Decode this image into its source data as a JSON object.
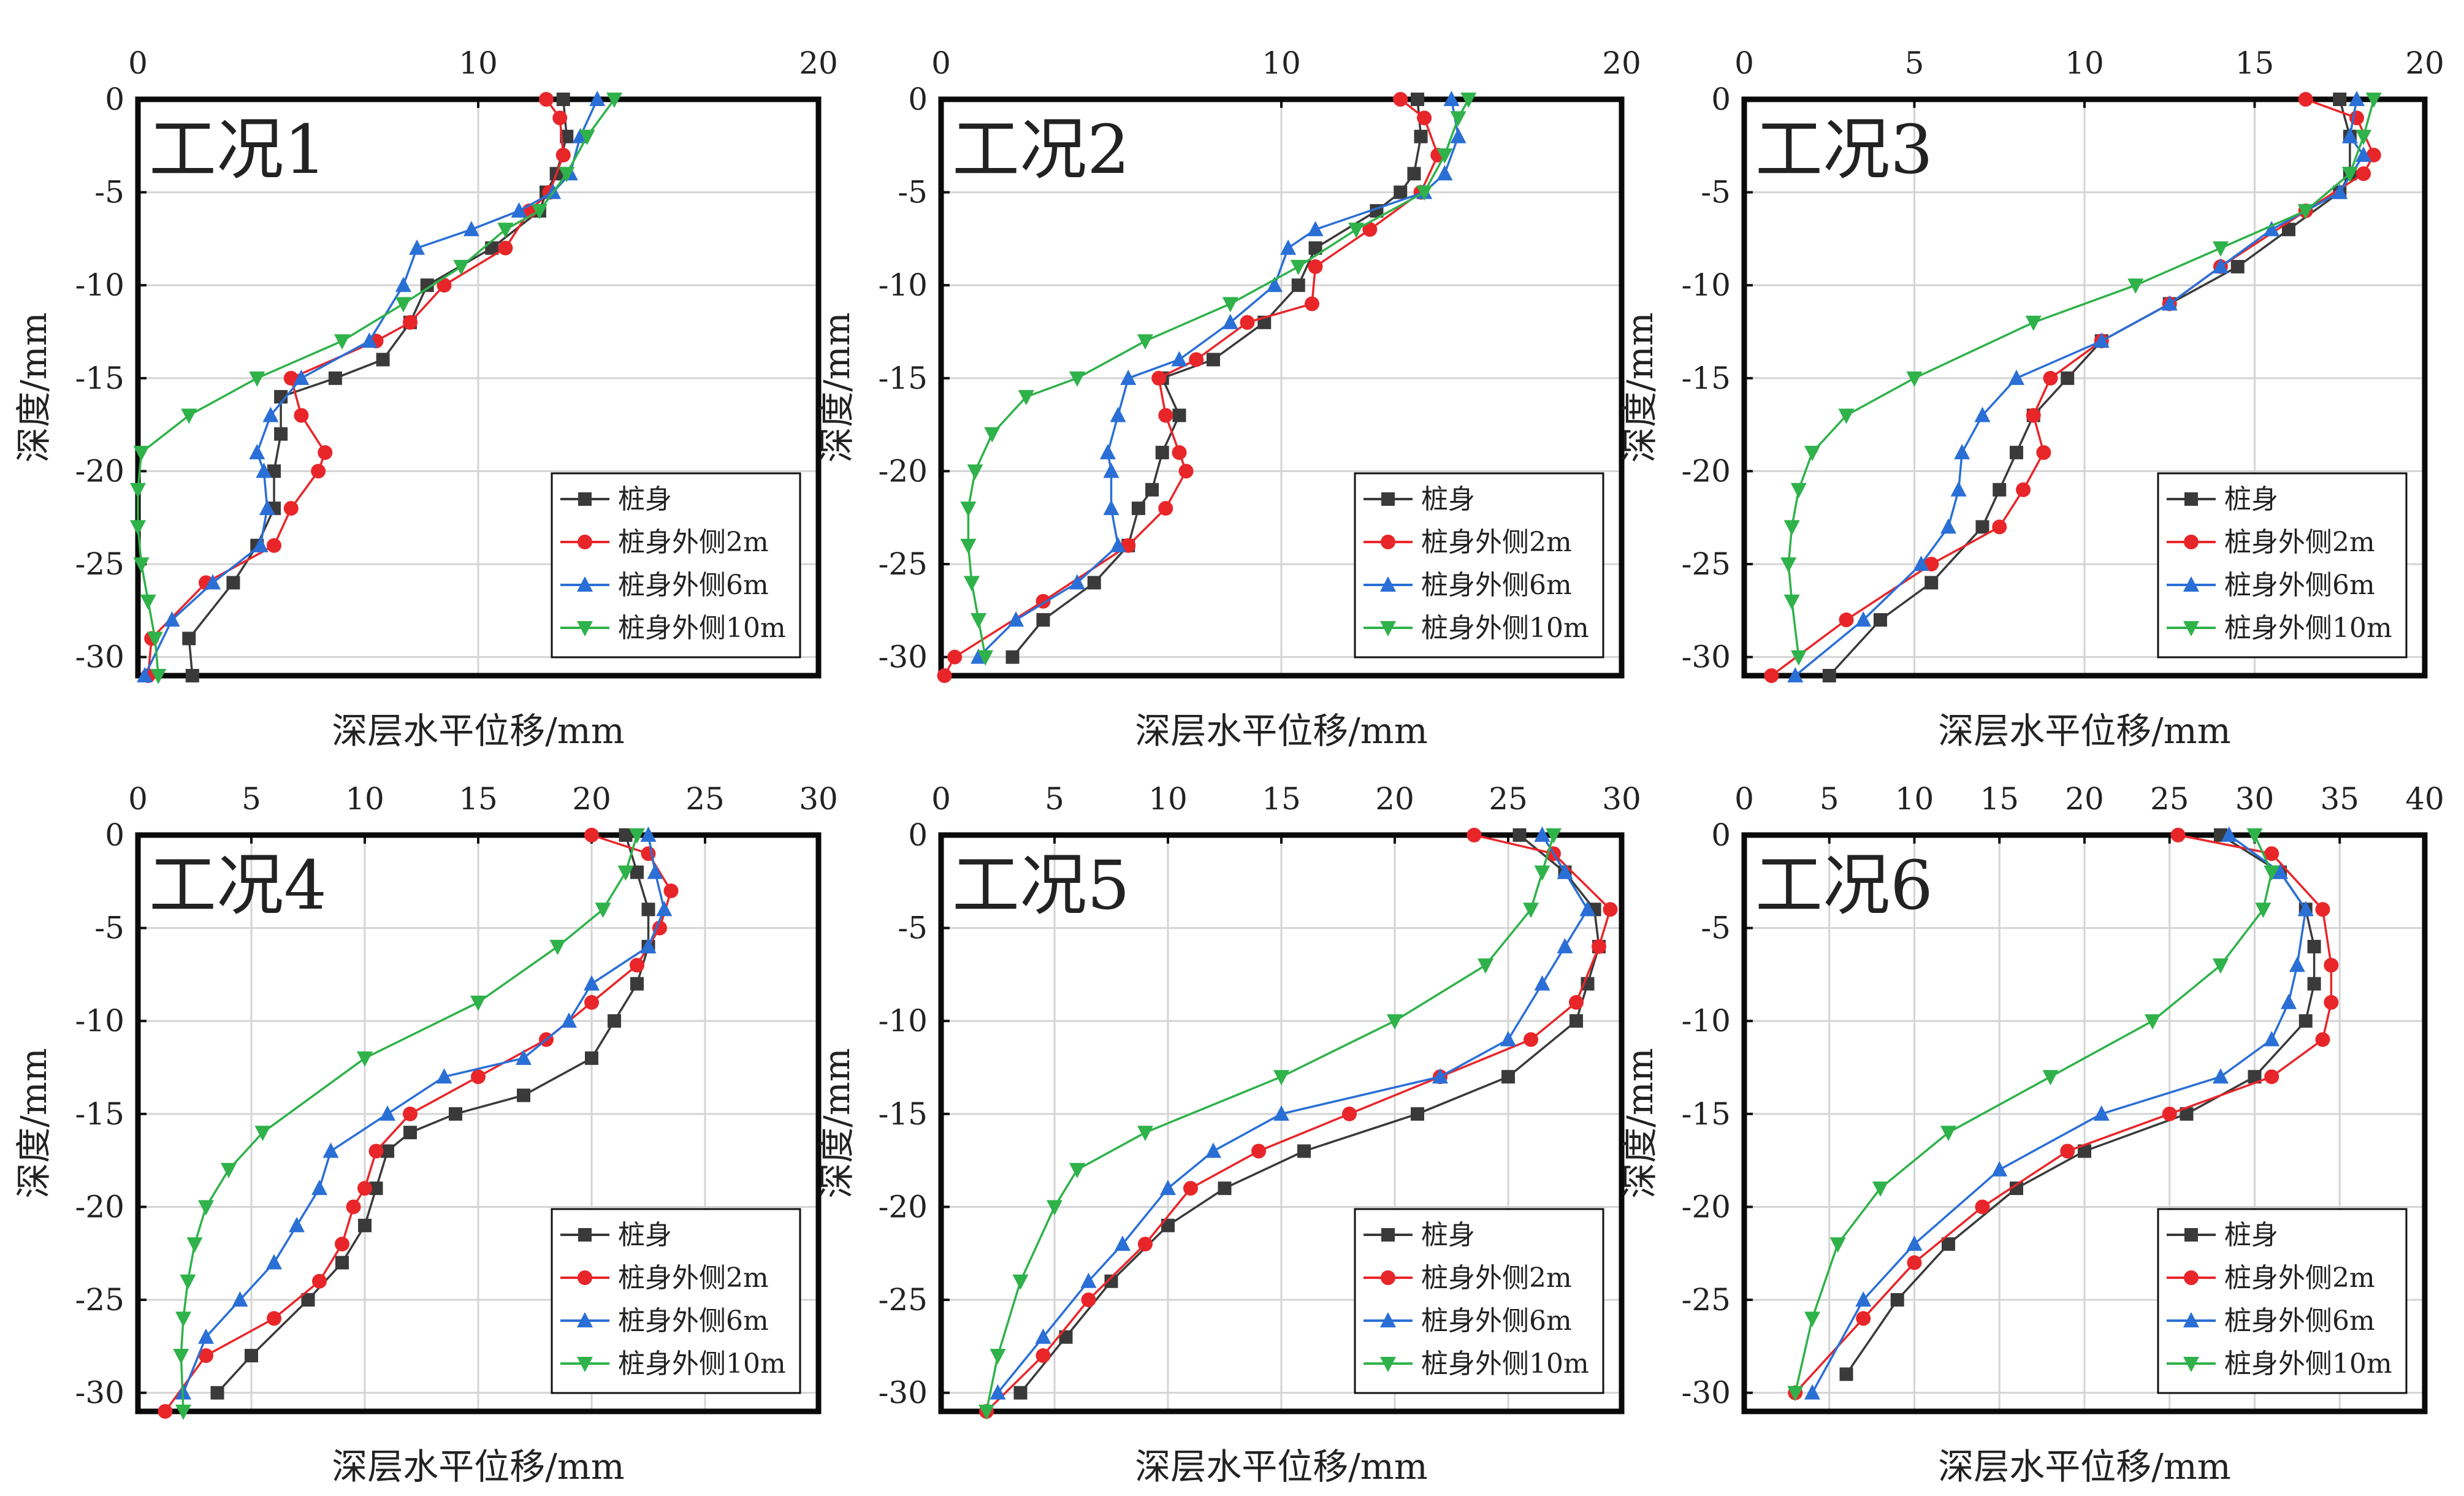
{
  "legend": [
    "桩身",
    "桩身外侧2m",
    "桩身外侧6m",
    "桩身外侧10m"
  ],
  "series_colors": [
    "#3a3a3a",
    "#e8262a",
    "#2a6fd6",
    "#2fb24a"
  ],
  "series_markers": [
    "square",
    "circle",
    "triangle-up",
    "triangle-down"
  ],
  "chart_data": [
    {
      "type": "line",
      "label": "工况1",
      "xlabel": "深层水平位移/mm",
      "ylabel": "深度/mm",
      "xlim": [
        0,
        20
      ],
      "xticks": [
        "0",
        "10",
        "20"
      ],
      "ylim": [
        -31,
        0
      ],
      "yticks": [
        "0",
        "-5",
        "-10",
        "-15",
        "-20",
        "-25",
        "-30"
      ],
      "x_axis_position": "top",
      "grid": true,
      "legend_position": "bottom-right",
      "series": [
        {
          "name": "桩身",
          "x": [
            12.5,
            12.6,
            12.3,
            12.0,
            11.8,
            10.4,
            8.5,
            8.0,
            7.2,
            5.8,
            4.2,
            4.2,
            4.0,
            4.0,
            3.5,
            2.8,
            1.5,
            1.6
          ],
          "y": [
            0,
            -2,
            -4,
            -5,
            -6,
            -8,
            -10,
            -12,
            -14,
            -15,
            -16,
            -18,
            -20,
            -22,
            -24,
            -26,
            -29,
            -31
          ]
        },
        {
          "name": "桩身外侧2m",
          "x": [
            12.0,
            12.4,
            12.5,
            12.1,
            11.5,
            10.8,
            9.0,
            8.0,
            7.0,
            4.5,
            4.8,
            5.5,
            5.3,
            4.5,
            4.0,
            2.0,
            0.4,
            0.3
          ],
          "y": [
            0,
            -1,
            -3,
            -5,
            -6,
            -8,
            -10,
            -12,
            -13,
            -15,
            -17,
            -19,
            -20,
            -22,
            -24,
            -26,
            -29,
            -31
          ]
        },
        {
          "name": "桩身外侧6m",
          "x": [
            13.5,
            13.0,
            12.7,
            12.2,
            11.2,
            9.8,
            8.2,
            7.8,
            6.8,
            4.8,
            3.9,
            3.5,
            3.7,
            3.8,
            3.6,
            2.2,
            1.0,
            0.2
          ],
          "y": [
            0,
            -2,
            -4,
            -5,
            -6,
            -7,
            -8,
            -10,
            -13,
            -15,
            -17,
            -19,
            -20,
            -22,
            -24,
            -26,
            -28,
            -31
          ]
        },
        {
          "name": "桩身外侧10m",
          "x": [
            14.0,
            13.2,
            12.6,
            11.8,
            10.8,
            9.5,
            7.8,
            6.0,
            3.5,
            1.5,
            0.1,
            0.0,
            0.0,
            0.1,
            0.3,
            0.5,
            0.6
          ],
          "y": [
            0,
            -2,
            -4,
            -6,
            -7,
            -9,
            -11,
            -13,
            -15,
            -17,
            -19,
            -21,
            -23,
            -25,
            -27,
            -29,
            -31
          ]
        }
      ]
    },
    {
      "type": "line",
      "label": "工况2",
      "xlabel": "深层水平位移/mm",
      "ylabel": "深度/mm",
      "xlim": [
        0,
        20
      ],
      "xticks": [
        "0",
        "10",
        "20"
      ],
      "ylim": [
        -31,
        0
      ],
      "yticks": [
        "0",
        "-5",
        "-10",
        "-15",
        "-20",
        "-25",
        "-30"
      ],
      "x_axis_position": "top",
      "grid": true,
      "legend_position": "bottom-right",
      "series": [
        {
          "name": "桩身",
          "x": [
            14.0,
            14.1,
            13.9,
            13.5,
            12.8,
            11.0,
            10.5,
            9.5,
            8.0,
            6.5,
            7.0,
            6.5,
            6.2,
            5.8,
            5.5,
            4.5,
            3.0,
            2.1
          ],
          "y": [
            0,
            -2,
            -4,
            -5,
            -6,
            -8,
            -10,
            -12,
            -14,
            -15,
            -17,
            -19,
            -21,
            -22,
            -24,
            -26,
            -28,
            -30
          ]
        },
        {
          "name": "桩身外侧2m",
          "x": [
            13.5,
            14.2,
            14.6,
            14.1,
            12.6,
            11.0,
            10.9,
            9.0,
            7.5,
            6.4,
            6.6,
            7.0,
            7.2,
            6.6,
            5.5,
            3.0,
            0.4,
            0.1
          ],
          "y": [
            0,
            -1,
            -3,
            -5,
            -7,
            -9,
            -11,
            -12,
            -14,
            -15,
            -17,
            -19,
            -20,
            -22,
            -24,
            -27,
            -30,
            -31
          ]
        },
        {
          "name": "桩身外侧6m",
          "x": [
            15.0,
            15.2,
            14.8,
            14.2,
            11.0,
            10.2,
            9.8,
            8.5,
            7.0,
            5.5,
            5.2,
            4.9,
            5.0,
            5.0,
            5.2,
            4.0,
            2.2,
            1.1
          ],
          "y": [
            0,
            -2,
            -4,
            -5,
            -7,
            -8,
            -10,
            -12,
            -14,
            -15,
            -17,
            -19,
            -20,
            -22,
            -24,
            -26,
            -28,
            -30
          ]
        },
        {
          "name": "桩身外侧10m",
          "x": [
            15.5,
            15.2,
            14.8,
            14.2,
            12.2,
            10.5,
            8.5,
            6.0,
            4.0,
            2.5,
            1.5,
            1.0,
            0.8,
            0.8,
            0.9,
            1.1,
            1.3
          ],
          "y": [
            0,
            -1,
            -3,
            -5,
            -7,
            -9,
            -11,
            -13,
            -15,
            -16,
            -18,
            -20,
            -22,
            -24,
            -26,
            -28,
            -30
          ]
        }
      ]
    },
    {
      "type": "line",
      "label": "工况3",
      "xlabel": "深层水平位移/mm",
      "ylabel": "深度/mm",
      "xlim": [
        0,
        20
      ],
      "xticks": [
        "0",
        "5",
        "10",
        "15",
        "20"
      ],
      "ylim": [
        -31,
        0
      ],
      "yticks": [
        "0",
        "-5",
        "-10",
        "-15",
        "-20",
        "-25",
        "-30"
      ],
      "x_axis_position": "top",
      "grid": true,
      "legend_position": "bottom-right",
      "series": [
        {
          "name": "桩身",
          "x": [
            17.5,
            17.8,
            17.8,
            17.5,
            16.0,
            14.5,
            12.5,
            10.5,
            9.5,
            8.5,
            8.0,
            7.5,
            7.0,
            5.5,
            4.0,
            2.5
          ],
          "y": [
            0,
            -2,
            -4,
            -5,
            -7,
            -9,
            -11,
            -13,
            -15,
            -17,
            -19,
            -21,
            -23,
            -26,
            -28,
            -31
          ]
        },
        {
          "name": "桩身外侧2m",
          "x": [
            16.5,
            18.0,
            18.5,
            18.2,
            16.5,
            14.0,
            12.5,
            10.5,
            9.0,
            8.5,
            8.8,
            8.2,
            7.5,
            5.5,
            3.0,
            0.8
          ],
          "y": [
            0,
            -1,
            -3,
            -4,
            -6,
            -9,
            -11,
            -13,
            -15,
            -17,
            -19,
            -21,
            -23,
            -25,
            -28,
            -31
          ]
        },
        {
          "name": "桩身外侧6m",
          "x": [
            18.0,
            17.8,
            18.2,
            17.5,
            15.5,
            14.0,
            12.5,
            10.5,
            8.0,
            7.0,
            6.4,
            6.3,
            6.0,
            5.2,
            3.5,
            1.5
          ],
          "y": [
            0,
            -2,
            -3,
            -5,
            -7,
            -9,
            -11,
            -13,
            -15,
            -17,
            -19,
            -21,
            -23,
            -25,
            -28,
            -31
          ]
        },
        {
          "name": "桩身外侧10m",
          "x": [
            18.5,
            18.2,
            17.8,
            16.5,
            14.0,
            11.5,
            8.5,
            5.0,
            3.0,
            2.0,
            1.6,
            1.4,
            1.3,
            1.4,
            1.6
          ],
          "y": [
            0,
            -2,
            -4,
            -6,
            -8,
            -10,
            -12,
            -15,
            -17,
            -19,
            -21,
            -23,
            -25,
            -27,
            -30
          ]
        }
      ]
    },
    {
      "type": "line",
      "label": "工况4",
      "xlabel": "深层水平位移/mm",
      "ylabel": "深度/mm",
      "xlim": [
        0,
        30
      ],
      "xticks": [
        "0",
        "5",
        "10",
        "15",
        "20",
        "25",
        "30"
      ],
      "ylim": [
        -31,
        0
      ],
      "yticks": [
        "0",
        "-5",
        "-10",
        "-15",
        "-20",
        "-25",
        "-30"
      ],
      "x_axis_position": "top",
      "grid": true,
      "legend_position": "bottom-right",
      "series": [
        {
          "name": "桩身",
          "x": [
            21.5,
            22.0,
            22.5,
            22.5,
            22.0,
            21.0,
            20.0,
            17.0,
            14.0,
            12.0,
            11.0,
            10.5,
            10.0,
            9.0,
            7.5,
            5.0,
            3.5
          ],
          "y": [
            0,
            -2,
            -4,
            -6,
            -8,
            -10,
            -12,
            -14,
            -15,
            -16,
            -17,
            -19,
            -21,
            -23,
            -25,
            -28,
            -30
          ]
        },
        {
          "name": "桩身外侧2m",
          "x": [
            20.0,
            22.5,
            23.5,
            23.0,
            22.0,
            20.0,
            18.0,
            15.0,
            12.0,
            10.5,
            10.0,
            9.5,
            9.0,
            8.0,
            6.0,
            3.0,
            1.2
          ],
          "y": [
            0,
            -1,
            -3,
            -5,
            -7,
            -9,
            -11,
            -13,
            -15,
            -17,
            -19,
            -20,
            -22,
            -24,
            -26,
            -28,
            -31
          ]
        },
        {
          "name": "桩身外侧6m",
          "x": [
            22.5,
            22.8,
            23.2,
            22.5,
            20.0,
            19.0,
            17.0,
            13.5,
            11.0,
            8.5,
            8.0,
            7.0,
            6.0,
            4.5,
            3.0,
            2.0
          ],
          "y": [
            0,
            -2,
            -4,
            -6,
            -8,
            -10,
            -12,
            -13,
            -15,
            -17,
            -19,
            -21,
            -23,
            -25,
            -27,
            -30
          ]
        },
        {
          "name": "桩身外侧10m",
          "x": [
            22.0,
            21.5,
            20.5,
            18.5,
            15.0,
            10.0,
            5.5,
            4.0,
            3.0,
            2.5,
            2.2,
            2.0,
            1.9,
            2.0
          ],
          "y": [
            0,
            -2,
            -4,
            -6,
            -9,
            -12,
            -16,
            -18,
            -20,
            -22,
            -24,
            -26,
            -28,
            -31
          ]
        }
      ]
    },
    {
      "type": "line",
      "label": "工况5",
      "xlabel": "深层水平位移/mm",
      "ylabel": "深度/mm",
      "xlim": [
        0,
        30
      ],
      "xticks": [
        "0",
        "5",
        "10",
        "15",
        "20",
        "25",
        "30"
      ],
      "ylim": [
        -31,
        0
      ],
      "yticks": [
        "0",
        "-5",
        "-10",
        "-15",
        "-20",
        "-25",
        "-30"
      ],
      "x_axis_position": "top",
      "grid": true,
      "legend_position": "bottom-right",
      "series": [
        {
          "name": "桩身",
          "x": [
            25.5,
            27.5,
            28.8,
            29.0,
            28.5,
            28.0,
            25.0,
            21.0,
            16.0,
            12.5,
            10.0,
            7.5,
            5.5,
            3.5
          ],
          "y": [
            0,
            -2,
            -4,
            -6,
            -8,
            -10,
            -13,
            -15,
            -17,
            -19,
            -21,
            -24,
            -27,
            -30
          ]
        },
        {
          "name": "桩身外侧2m",
          "x": [
            23.5,
            27.0,
            29.5,
            29.0,
            28.0,
            26.0,
            22.0,
            18.0,
            14.0,
            11.0,
            9.0,
            6.5,
            4.5,
            2.0
          ],
          "y": [
            0,
            -1,
            -4,
            -6,
            -9,
            -11,
            -13,
            -15,
            -17,
            -19,
            -22,
            -25,
            -28,
            -31
          ]
        },
        {
          "name": "桩身外侧6m",
          "x": [
            26.5,
            27.5,
            28.5,
            27.5,
            26.5,
            25.0,
            22.0,
            15.0,
            12.0,
            10.0,
            8.0,
            6.5,
            4.5,
            2.5
          ],
          "y": [
            0,
            -2,
            -4,
            -6,
            -8,
            -11,
            -13,
            -15,
            -17,
            -19,
            -22,
            -24,
            -27,
            -30
          ]
        },
        {
          "name": "桩身外侧10m",
          "x": [
            27.0,
            26.5,
            26.0,
            24.0,
            20.0,
            15.0,
            9.0,
            6.0,
            5.0,
            3.5,
            2.5,
            2.0
          ],
          "y": [
            0,
            -2,
            -4,
            -7,
            -10,
            -13,
            -16,
            -18,
            -20,
            -24,
            -28,
            -31
          ]
        }
      ]
    },
    {
      "type": "line",
      "label": "工况6",
      "xlabel": "深层水平位移/mm",
      "ylabel": "深度/mm",
      "xlim": [
        0,
        40
      ],
      "xticks": [
        "0",
        "5",
        "10",
        "15",
        "20",
        "25",
        "30",
        "35",
        "40"
      ],
      "ylim": [
        -31,
        0
      ],
      "yticks": [
        "0",
        "-5",
        "-10",
        "-15",
        "-20",
        "-25",
        "-30"
      ],
      "x_axis_position": "top",
      "grid": true,
      "legend_position": "bottom-right",
      "series": [
        {
          "name": "桩身",
          "x": [
            28.0,
            31.5,
            33.0,
            33.5,
            33.5,
            33.0,
            30.0,
            26.0,
            20.0,
            16.0,
            12.0,
            9.0,
            6.0
          ],
          "y": [
            0,
            -2,
            -4,
            -6,
            -8,
            -10,
            -13,
            -15,
            -17,
            -19,
            -22,
            -25,
            -29
          ]
        },
        {
          "name": "桩身外侧2m",
          "x": [
            25.5,
            31.0,
            34.0,
            34.5,
            34.5,
            34.0,
            31.0,
            25.0,
            19.0,
            14.0,
            10.0,
            7.0,
            3.0
          ],
          "y": [
            0,
            -1,
            -4,
            -7,
            -9,
            -11,
            -13,
            -15,
            -17,
            -20,
            -23,
            -26,
            -30
          ]
        },
        {
          "name": "桩身外侧6m",
          "x": [
            28.5,
            31.5,
            33.0,
            32.5,
            32.0,
            31.0,
            28.0,
            21.0,
            15.0,
            10.0,
            7.0,
            4.0
          ],
          "y": [
            0,
            -2,
            -4,
            -7,
            -9,
            -11,
            -13,
            -15,
            -18,
            -22,
            -25,
            -30
          ]
        },
        {
          "name": "桩身外侧10m",
          "x": [
            30.0,
            31.0,
            30.5,
            28.0,
            24.0,
            18.0,
            12.0,
            8.0,
            5.5,
            4.0,
            3.0
          ],
          "y": [
            0,
            -2,
            -4,
            -7,
            -10,
            -13,
            -16,
            -19,
            -22,
            -26,
            -30
          ]
        }
      ]
    }
  ]
}
